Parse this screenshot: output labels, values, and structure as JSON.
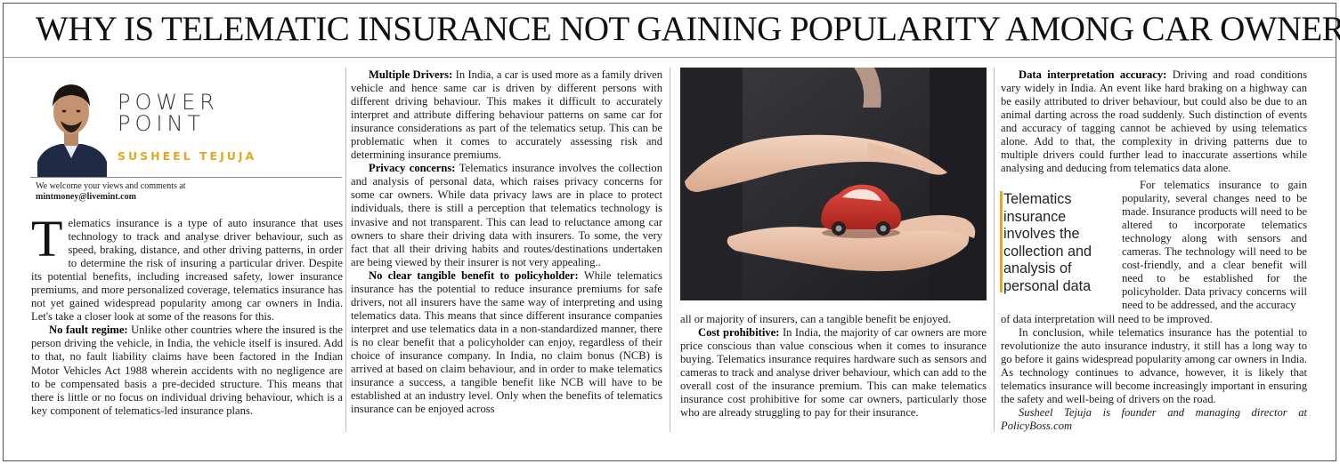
{
  "headline": "WHY IS TELEMATIC INSURANCE NOT GAINING POPULARITY AMONG CAR OWNERS?",
  "column_label": [
    "POWER",
    "POINT"
  ],
  "author": "SUSHEEL TEJUJA",
  "contact": {
    "line": "We welcome your views and comments at",
    "email": "mintmoney@livemint.com"
  },
  "pull_quote": "Telematics insurance involves the collection and analysis of personal data",
  "col1": {
    "dropcap": "T",
    "intro": "elematics insurance is a type of auto insurance that uses technology to track and analyse driver behaviour, such as speed, braking, distance, and other driving patterns, in order to determine the risk of insuring a particular driver. Despite its potential benefits, including increased safety, lower insurance premiums, and more personalized coverage, telematics insurance has not yet gained widespread popularity among car owners in India. Let's take a closer look at some of the reasons for this.",
    "p2_head": "No fault regime:",
    "p2_body": " Unlike other countries where the insured is the person driving the vehicle, in India, the vehicle itself is insured. Add to that, no fault liability claims have been factored in the Indian Motor Vehicles Act 1988 wherein accidents with no negligence are to be compensated basis a pre-decided structure. This means that there is little or no focus on individual driving behaviour, which is a key component of telematics-led insurance plans."
  },
  "col2": {
    "p1_head": "Multiple Drivers:",
    "p1_body": " In India, a car is used more as a family driven vehicle and hence same car is driven by different persons with different driving behaviour. This makes it difficult to accurately interpret and attribute differing behaviour patterns on same car for insurance considerations as part of the telematics setup. This can be problematic when it comes to accurately assessing risk and determining insurance premiums.",
    "p2_head": "Privacy concerns:",
    "p2_body": " Telematics insurance involves the collection and analysis of personal data, which raises privacy concerns for some car owners. While data privacy laws are in place to protect individuals, there is still a perception that telematics technology is invasive and not transparent. This can lead to reluctance among car owners to share their driving data with insurers. To some, the very fact that all their driving habits and routes/destinations undertaken are being viewed by their insurer is not very appealing..",
    "p3_head": "No clear tangible benefit to policyholder:",
    "p3_body": " While telematics insurance has the potential to reduce insurance premiums for safe drivers, not all insurers have the same way of interpreting and using telematics data. This means that since different insurance companies interpret and use telematics data in a non-standardized manner, there is no clear benefit that a policyholder can enjoy, regardless of their choice of insurance company. In India, no claim bonus (NCB) is arrived at based on claim behaviour, and in order to make telematics insurance a success, a tangible benefit like NCB will have to be established at an industry level. Only when the benefits of telematics insurance can be enjoyed across"
  },
  "col3": {
    "p1": "all or majority of insurers, can a tangible benefit be enjoyed.",
    "p2_head": "Cost prohibitive:",
    "p2_body": " In India, the majority of car owners are more price conscious than value conscious when it comes to insurance buying. Telematics insurance requires hardware such as sensors and cameras to track and analyse driver behaviour, which can add to the overall cost of the insurance premium. This can make telematics insurance cost prohibitive for some car owners, particularly those who are already struggling to pay for their insurance."
  },
  "col4": {
    "p1_head": "Data interpretation accuracy:",
    "p1_body": " Driving and road conditions vary widely in India. An event like hard braking on a highway can be easily attributed to driver behaviour, but could also be due to an animal darting across the road suddenly. Such distinction of events and accuracy of tagging cannot be achieved by using telematics alone. Add to that, the complexity in driving patterns due to multiple drivers could further lead to inaccurate assertions while analysing and deducing from telematics data alone.",
    "p2": "For telematics insurance to gain popularity, several changes need to be made. Insurance products will need to be altered to incorporate telematics technology along with sensors and cameras. The technology will need to be cost-friendly, and a clear benefit will need to be established for the policyholder. Data privacy concerns will need to be addressed, and the accuracy",
    "p2_cont": "of data interpretation will need to be improved.",
    "p3": "In conclusion, while telematics insurance has the potential to revolutionize the auto insurance industry, it still has a long way to go before it gains widespread popularity among car owners in India. As technology continues to advance, however, it is likely that telematics insurance will become increasingly important in ensuring the safety and well-being of drivers on the road.",
    "signature": "Susheel Tejuja is founder and managing director at PolicyBoss.com"
  },
  "colors": {
    "accent": "#e4a81f",
    "photo_bg": "#2a2a2e",
    "car": "#c8322c"
  }
}
